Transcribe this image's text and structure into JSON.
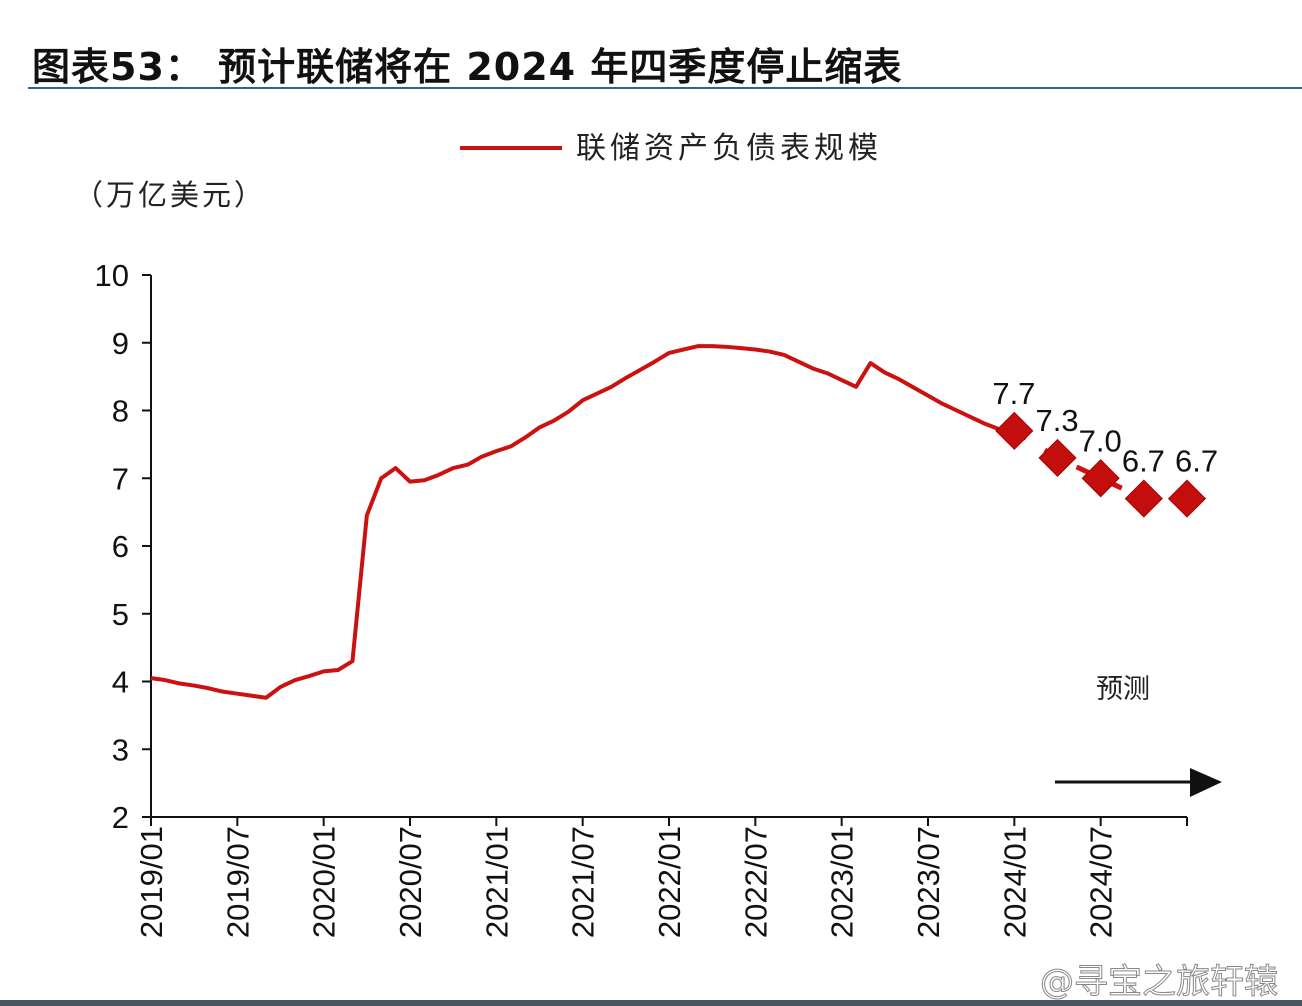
{
  "title": "图表53： 预计联储将在 2024 年四季度停止缩表",
  "watermark": "@寻宝之旅轩辕",
  "chart_data": {
    "type": "line",
    "title": "图表53： 预计联储将在 2024 年四季度停止缩表",
    "ylabel": "（万亿美元）",
    "ylim": [
      2,
      10
    ],
    "yticks": [
      "2",
      "3",
      "4",
      "5",
      "6",
      "7",
      "8",
      "9",
      "10"
    ],
    "xlim": [
      "2019/01",
      "2025/01"
    ],
    "xticks": [
      "2019/01",
      "2019/07",
      "2020/01",
      "2020/07",
      "2021/01",
      "2021/07",
      "2022/01",
      "2022/07",
      "2023/01",
      "2023/07",
      "2024/01",
      "2024/07"
    ],
    "legend": {
      "position": "top",
      "entries": [
        "联储资产负债表规模"
      ]
    },
    "grid": false,
    "color": "#cc1111",
    "annotation": "预测",
    "series": [
      {
        "name": "联储资产负债表规模",
        "x": [
          "2019/01",
          "2019/02",
          "2019/03",
          "2019/04",
          "2019/05",
          "2019/06",
          "2019/07",
          "2019/08",
          "2019/09",
          "2019/10",
          "2019/11",
          "2019/12",
          "2020/01",
          "2020/02",
          "2020/03",
          "2020/04",
          "2020/05",
          "2020/06",
          "2020/07",
          "2020/08",
          "2020/09",
          "2020/10",
          "2020/11",
          "2020/12",
          "2021/01",
          "2021/02",
          "2021/03",
          "2021/04",
          "2021/05",
          "2021/06",
          "2021/07",
          "2021/08",
          "2021/09",
          "2021/10",
          "2021/11",
          "2021/12",
          "2022/01",
          "2022/02",
          "2022/03",
          "2022/04",
          "2022/05",
          "2022/06",
          "2022/07",
          "2022/08",
          "2022/09",
          "2022/10",
          "2022/11",
          "2022/12",
          "2023/01",
          "2023/02",
          "2023/03",
          "2023/04",
          "2023/05",
          "2023/06",
          "2023/07",
          "2023/08",
          "2023/09",
          "2023/10",
          "2023/11",
          "2023/12",
          "2024/01"
        ],
        "values": [
          4.05,
          4.02,
          3.97,
          3.94,
          3.9,
          3.85,
          3.82,
          3.79,
          3.76,
          3.92,
          4.02,
          4.08,
          4.15,
          4.17,
          4.3,
          6.45,
          7.0,
          7.15,
          6.95,
          6.97,
          7.05,
          7.15,
          7.2,
          7.32,
          7.4,
          7.47,
          7.6,
          7.75,
          7.85,
          7.98,
          8.15,
          8.25,
          8.35,
          8.48,
          8.6,
          8.72,
          8.85,
          8.9,
          8.95,
          8.95,
          8.94,
          8.92,
          8.9,
          8.87,
          8.82,
          8.72,
          8.62,
          8.55,
          8.45,
          8.35,
          8.7,
          8.56,
          8.46,
          8.34,
          8.22,
          8.1,
          8.0,
          7.9,
          7.8,
          7.72,
          7.67
        ]
      },
      {
        "name": "预测",
        "x": [
          "2024/01",
          "2024/04",
          "2024/07",
          "2024/10",
          "2025/01"
        ],
        "values": [
          7.7,
          7.3,
          7.0,
          6.7,
          6.7
        ],
        "labels": [
          "7.7",
          "7.3",
          "7.0",
          "6.7",
          "6.7"
        ]
      }
    ]
  }
}
